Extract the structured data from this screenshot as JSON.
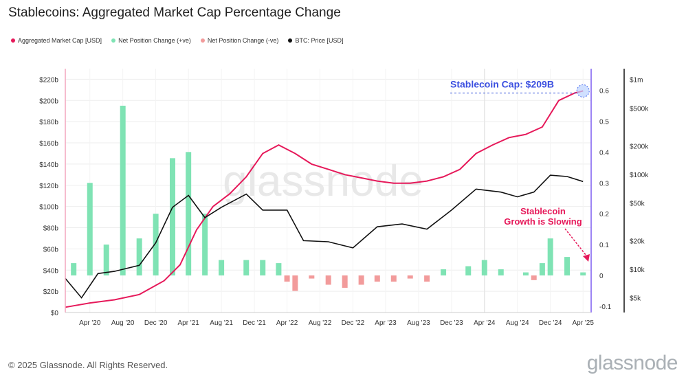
{
  "header": {
    "title": "Stablecoins: Aggregated Market Cap Percentage Change"
  },
  "legend": [
    {
      "label": "Aggregated Market Cap [USD]",
      "color": "#e6195a"
    },
    {
      "label": "Net Position Change (+ve)",
      "color": "#7fe3b4"
    },
    {
      "label": "Net Position Change (-ve)",
      "color": "#f29b9b"
    },
    {
      "label": "BTC: Price [USD]",
      "color": "#111111"
    }
  ],
  "footer": {
    "copyright": "© 2025 Glassnode. All Rights Reserved.",
    "brand": "glassnode"
  },
  "watermark": "glassnode",
  "annotations": {
    "cap_label": "Stablecoin Cap: $209B",
    "growth_line1": "Stablecoin",
    "growth_line2": "Growth is Slowing"
  },
  "chart_data": {
    "type": "line",
    "title": "Stablecoins: Aggregated Market Cap Percentage Change",
    "x_ticks": [
      "Apr '20",
      "Aug '20",
      "Dec '20",
      "Apr '21",
      "Aug '21",
      "Dec '21",
      "Apr '22",
      "Aug '22",
      "Dec '22",
      "Apr '23",
      "Aug '23",
      "Dec '23",
      "Apr '24",
      "Aug '24",
      "Dec '24",
      "Apr '25"
    ],
    "y_left": {
      "ticks": [
        "$0",
        "$20b",
        "$40b",
        "$60b",
        "$80b",
        "$100b",
        "$120b",
        "$140b",
        "$160b",
        "$180b",
        "$200b",
        "$220b"
      ],
      "range": [
        0,
        230
      ]
    },
    "y_right_pct": {
      "ticks": [
        "-0.1",
        "0",
        "0.1",
        "0.2",
        "0.3",
        "0.4",
        "0.5",
        "0.6"
      ],
      "range": [
        -0.12,
        0.67
      ]
    },
    "y_right_price": {
      "ticks": [
        "$5k",
        "$10k",
        "$20k",
        "$50k",
        "$100k",
        "$200k",
        "$500k",
        "$1m"
      ],
      "scale": "log"
    },
    "series": [
      {
        "name": "Aggregated Market Cap [USD]",
        "color": "#e6195a",
        "x": [
          "2020-01",
          "2020-04",
          "2020-07",
          "2020-10",
          "2021-01",
          "2021-03",
          "2021-05",
          "2021-07",
          "2021-09",
          "2021-11",
          "2022-01",
          "2022-03",
          "2022-05",
          "2022-07",
          "2022-09",
          "2022-11",
          "2023-01",
          "2023-03",
          "2023-05",
          "2023-07",
          "2023-09",
          "2023-11",
          "2024-01",
          "2024-03",
          "2024-05",
          "2024-07",
          "2024-09",
          "2024-11",
          "2025-01",
          "2025-03",
          "2025-04"
        ],
        "values": [
          5,
          9,
          12,
          17,
          30,
          45,
          78,
          100,
          112,
          128,
          150,
          158,
          150,
          140,
          135,
          130,
          127,
          124,
          122,
          122,
          124,
          128,
          135,
          150,
          158,
          165,
          168,
          175,
          200,
          207,
          209
        ]
      },
      {
        "name": "BTC: Price [USD]",
        "color": "#111111",
        "x": [
          "2020-01",
          "2020-03",
          "2020-05",
          "2020-07",
          "2020-10",
          "2020-12",
          "2021-02",
          "2021-04",
          "2021-06",
          "2021-08",
          "2021-11",
          "2022-01",
          "2022-04",
          "2022-06",
          "2022-09",
          "2022-12",
          "2023-03",
          "2023-06",
          "2023-09",
          "2023-12",
          "2024-03",
          "2024-06",
          "2024-08",
          "2024-10",
          "2024-12",
          "2025-02",
          "2025-04"
        ],
        "values": [
          8000,
          5000,
          9000,
          9500,
          11000,
          19000,
          45000,
          60000,
          35000,
          45000,
          62000,
          42000,
          42000,
          20000,
          19500,
          16800,
          28000,
          30000,
          26500,
          42000,
          70000,
          65000,
          58000,
          65000,
          98000,
          95000,
          84000
        ]
      },
      {
        "name": "Net Position Change (+ve)",
        "color": "#7fe3b4",
        "x": [
          "2020-02",
          "2020-04",
          "2020-06",
          "2020-08",
          "2020-10",
          "2020-12",
          "2021-02",
          "2021-04",
          "2021-06",
          "2021-08",
          "2021-11",
          "2022-01",
          "2022-03",
          "2023-11",
          "2024-02",
          "2024-04",
          "2024-06",
          "2024-09",
          "2024-11",
          "2024-12",
          "2025-02",
          "2025-04"
        ],
        "values": [
          0.04,
          0.3,
          0.1,
          0.55,
          0.12,
          0.2,
          0.38,
          0.4,
          0.2,
          0.05,
          0.05,
          0.05,
          0.04,
          0.02,
          0.03,
          0.05,
          0.02,
          0.01,
          0.04,
          0.12,
          0.06,
          0.01
        ]
      },
      {
        "name": "Net Position Change (-ve)",
        "color": "#f29b9b",
        "x": [
          "2022-04",
          "2022-05",
          "2022-07",
          "2022-09",
          "2022-11",
          "2023-01",
          "2023-03",
          "2023-05",
          "2023-07",
          "2023-09",
          "2024-10"
        ],
        "values": [
          -0.02,
          -0.05,
          -0.01,
          -0.03,
          -0.04,
          -0.03,
          -0.02,
          -0.02,
          -0.01,
          -0.02,
          -0.015
        ]
      }
    ],
    "grid": true,
    "legend_position": "top-left"
  }
}
